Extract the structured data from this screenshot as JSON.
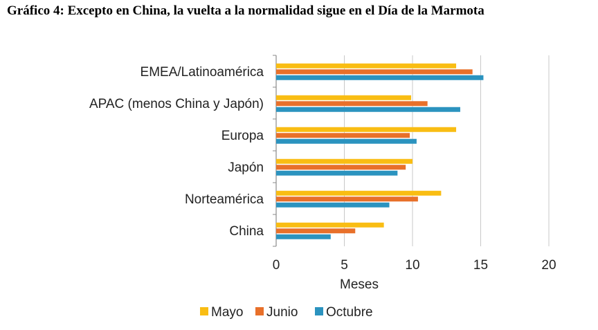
{
  "title": "Gráfico 4: Excepto en China, la vuelta a la normalidad sigue en el Día de la Marmota",
  "chart_data": {
    "type": "bar",
    "orientation": "horizontal",
    "categories": [
      "EMEA/Latinoamérica",
      "APAC (menos China y Japón)",
      "Europa",
      "Japón",
      "Norteamérica",
      "China"
    ],
    "series": [
      {
        "name": "Mayo",
        "color": "#F9BD13",
        "values": [
          13.2,
          9.9,
          13.2,
          10.0,
          12.1,
          7.9
        ]
      },
      {
        "name": "Junio",
        "color": "#E8702A",
        "values": [
          14.4,
          11.1,
          9.8,
          9.5,
          10.4,
          5.8
        ]
      },
      {
        "name": "Octubre",
        "color": "#2B93BF",
        "values": [
          15.2,
          13.5,
          10.3,
          8.9,
          8.3,
          4.0
        ]
      }
    ],
    "xlim": [
      0,
      20
    ],
    "xticks": [
      "0",
      "5",
      "10",
      "15",
      "20"
    ],
    "xlabel": "Meses",
    "legend_position": "bottom"
  }
}
